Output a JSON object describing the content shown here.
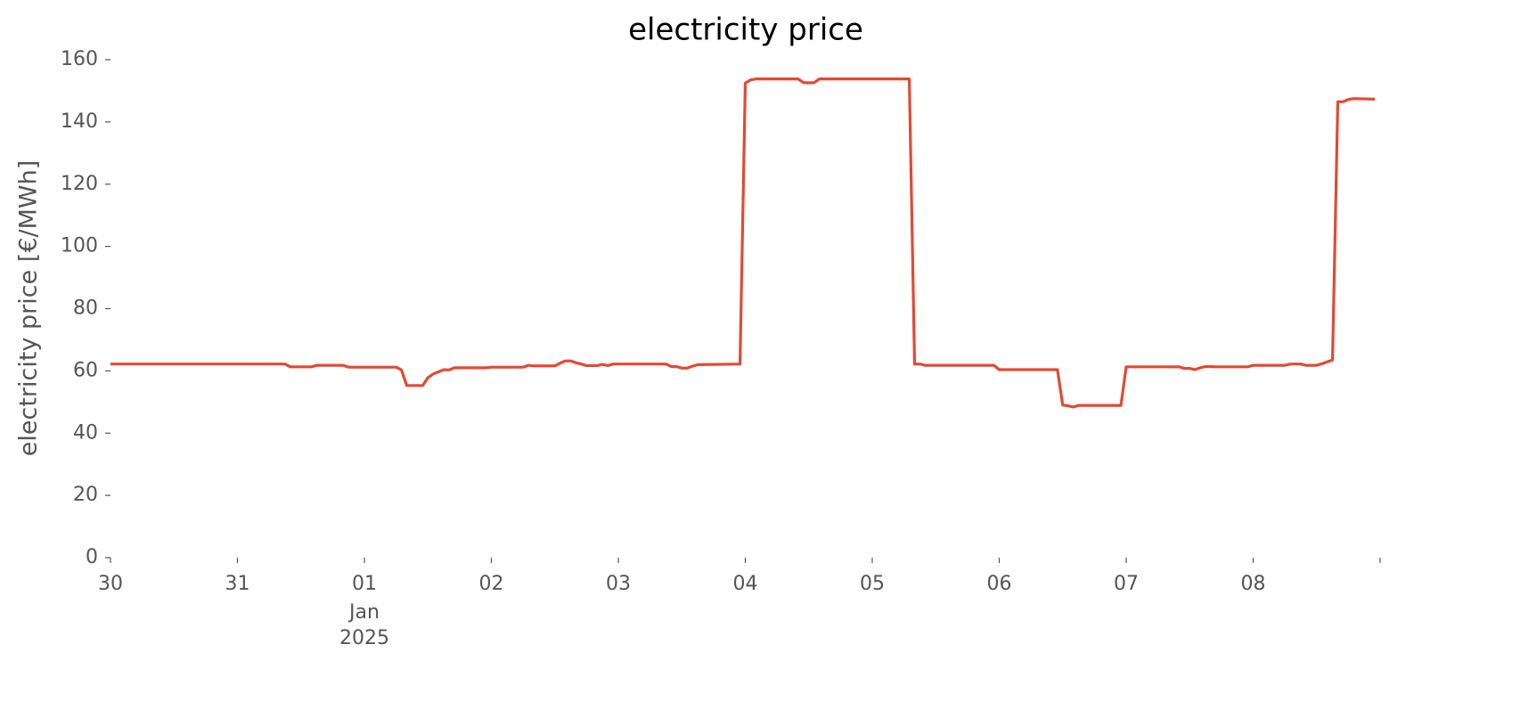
{
  "chart_data": {
    "type": "line",
    "title": "electricity price",
    "ylabel": "electricity price [€/MWh]",
    "x_secondary_label": [
      "Jan",
      "2025"
    ],
    "xlim": [
      "2024-12-30T00:00",
      "2025-01-09T00:00"
    ],
    "xticks": [
      {
        "value": "2024-12-30T00:00",
        "label": "30"
      },
      {
        "value": "2024-12-31T00:00",
        "label": "31"
      },
      {
        "value": "2025-01-01T00:00",
        "label": "01"
      },
      {
        "value": "2025-01-02T00:00",
        "label": "02"
      },
      {
        "value": "2025-01-03T00:00",
        "label": "03"
      },
      {
        "value": "2025-01-04T00:00",
        "label": "04"
      },
      {
        "value": "2025-01-05T00:00",
        "label": "05"
      },
      {
        "value": "2025-01-06T00:00",
        "label": "06"
      },
      {
        "value": "2025-01-07T00:00",
        "label": "07"
      },
      {
        "value": "2025-01-08T00:00",
        "label": "08"
      }
    ],
    "ylim": [
      0,
      160
    ],
    "yticks": [
      0,
      20,
      40,
      60,
      80,
      100,
      120,
      140,
      160
    ],
    "grid": false,
    "x": [
      "2024-12-30T00:00",
      "2024-12-31T09:00",
      "2024-12-31T10:00",
      "2024-12-31T14:00",
      "2024-12-31T15:00",
      "2024-12-31T20:00",
      "2024-12-31T21:00",
      "2025-01-01T06:00",
      "2025-01-01T07:00",
      "2025-01-01T08:00",
      "2025-01-01T11:00",
      "2025-01-01T12:00",
      "2025-01-01T13:00",
      "2025-01-01T15:00",
      "2025-01-01T16:00",
      "2025-01-01T17:00",
      "2025-01-01T23:00",
      "2025-01-02T00:00",
      "2025-01-02T06:00",
      "2025-01-02T07:00",
      "2025-01-02T08:00",
      "2025-01-02T12:00",
      "2025-01-02T13:00",
      "2025-01-02T14:00",
      "2025-01-02T15:00",
      "2025-01-02T16:00",
      "2025-01-02T17:00",
      "2025-01-02T18:00",
      "2025-01-02T20:00",
      "2025-01-02T21:00",
      "2025-01-02T22:00",
      "2025-01-02T23:00",
      "2025-01-03T09:00",
      "2025-01-03T10:00",
      "2025-01-03T11:00",
      "2025-01-03T12:00",
      "2025-01-03T13:00",
      "2025-01-03T14:00",
      "2025-01-03T15:00",
      "2025-01-03T23:00",
      "2025-01-04T00:00",
      "2025-01-04T01:00",
      "2025-01-04T02:00",
      "2025-01-04T10:00",
      "2025-01-04T11:00",
      "2025-01-04T13:00",
      "2025-01-04T14:00",
      "2025-01-05T07:00",
      "2025-01-05T08:00",
      "2025-01-05T09:00",
      "2025-01-05T10:00",
      "2025-01-05T23:00",
      "2025-01-06T00:00",
      "2025-01-06T11:00",
      "2025-01-06T12:00",
      "2025-01-06T13:00",
      "2025-01-06T14:00",
      "2025-01-06T15:00",
      "2025-01-06T23:00",
      "2025-01-07T00:00",
      "2025-01-07T10:00",
      "2025-01-07T11:00",
      "2025-01-07T12:00",
      "2025-01-07T13:00",
      "2025-01-07T14:00",
      "2025-01-07T15:00",
      "2025-01-07T16:00",
      "2025-01-07T17:00",
      "2025-01-07T23:00",
      "2025-01-08T00:00",
      "2025-01-08T06:00",
      "2025-01-08T07:00",
      "2025-01-08T09:00",
      "2025-01-08T10:00",
      "2025-01-08T12:00",
      "2025-01-08T13:00",
      "2025-01-08T15:00",
      "2025-01-08T16:00",
      "2025-01-08T17:00",
      "2025-01-08T18:00",
      "2025-01-08T19:00",
      "2025-01-08T23:00"
    ],
    "series": [
      {
        "name": "electricity price",
        "color": "#e24a33",
        "values": [
          62.2,
          62.2,
          61.3,
          61.3,
          61.8,
          61.8,
          61.2,
          61.2,
          60.3,
          55.3,
          55.3,
          57.8,
          59,
          60.4,
          60.3,
          61,
          61,
          61.2,
          61.2,
          61.8,
          61.6,
          61.6,
          62.5,
          63.2,
          63.2,
          62.6,
          62.2,
          61.7,
          61.7,
          62.1,
          61.7,
          62.2,
          62.2,
          61.4,
          61.4,
          60.9,
          60.9,
          61.5,
          62,
          62.2,
          152.5,
          153.5,
          153.8,
          153.8,
          152.6,
          152.6,
          153.8,
          153.8,
          62.2,
          62.2,
          61.8,
          61.8,
          60.4,
          60.4,
          49,
          48.8,
          48.4,
          48.9,
          48.9,
          61.3,
          61.3,
          60.8,
          60.8,
          60.4,
          61,
          61.4,
          61.4,
          61.3,
          61.3,
          61.8,
          61.8,
          62.2,
          62.2,
          61.8,
          61.8,
          62.3,
          63.5,
          146.5,
          146.5,
          147.2,
          147.5,
          147.3
        ]
      }
    ]
  }
}
